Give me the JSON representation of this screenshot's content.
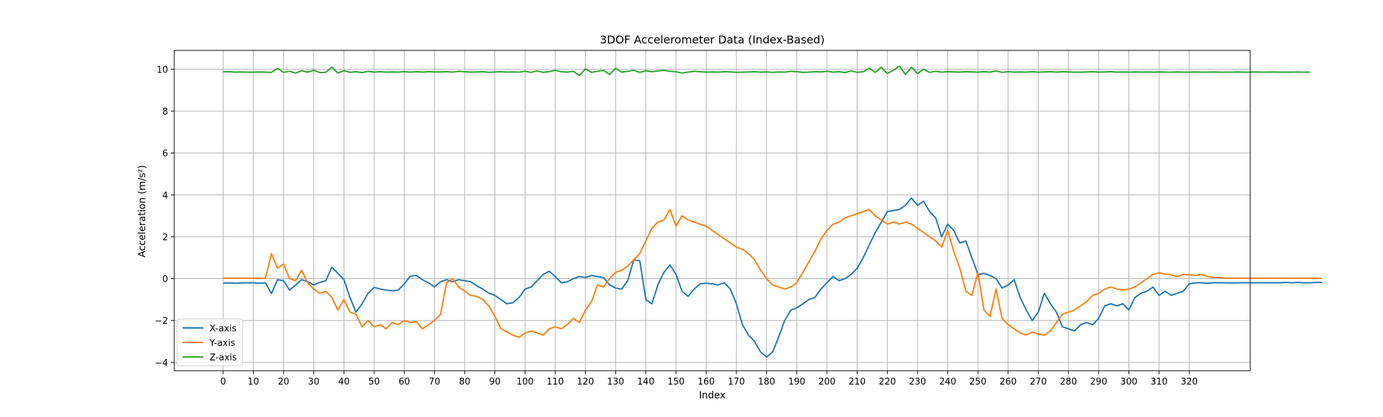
{
  "chart_data": {
    "type": "line",
    "title": "3DOF Accelerometer Data (Index-Based)",
    "xlabel": "Index",
    "ylabel": "Acceleration (m/s²)",
    "xlim": [
      -16.2,
      340.2
    ],
    "ylim": [
      -4.4,
      10.9
    ],
    "x_ticks": [
      "0",
      "10",
      "20",
      "30",
      "40",
      "50",
      "60",
      "70",
      "80",
      "90",
      "100",
      "110",
      "120",
      "130",
      "140",
      "150",
      "160",
      "170",
      "180",
      "190",
      "200",
      "210",
      "220",
      "230",
      "240",
      "250",
      "260",
      "270",
      "280",
      "290",
      "300",
      "310",
      "320"
    ],
    "y_ticks": [
      "−4",
      "−2",
      "0",
      "2",
      "4",
      "6",
      "8",
      "10"
    ],
    "grid": true,
    "legend_position": "lower-left",
    "x_start": 0,
    "x_step": 2,
    "series": [
      {
        "name": "X-axis",
        "color": "#1f77b4",
        "values": [
          -0.22,
          -0.2,
          -0.22,
          -0.21,
          -0.2,
          -0.2,
          -0.22,
          -0.2,
          -0.72,
          -0.05,
          -0.1,
          -0.55,
          -0.3,
          -0.05,
          -0.15,
          -0.3,
          -0.18,
          -0.1,
          0.55,
          0.25,
          -0.05,
          -0.9,
          -1.6,
          -1.2,
          -0.7,
          -0.42,
          -0.5,
          -0.55,
          -0.58,
          -0.55,
          -0.25,
          0.12,
          0.15,
          -0.05,
          -0.2,
          -0.4,
          -0.15,
          -0.05,
          -0.15,
          -0.05,
          -0.1,
          -0.15,
          -0.35,
          -0.5,
          -0.7,
          -0.8,
          -1.0,
          -1.2,
          -1.15,
          -0.9,
          -0.5,
          -0.4,
          -0.1,
          0.2,
          0.35,
          0.1,
          -0.2,
          -0.15,
          0.0,
          0.1,
          0.05,
          0.15,
          0.1,
          0.05,
          -0.3,
          -0.45,
          -0.5,
          -0.1,
          0.9,
          0.85,
          -1.0,
          -1.2,
          -0.3,
          0.3,
          0.65,
          0.2,
          -0.6,
          -0.85,
          -0.5,
          -0.25,
          -0.22,
          -0.25,
          -0.3,
          -0.2,
          -0.5,
          -1.2,
          -2.2,
          -2.7,
          -3.0,
          -3.5,
          -3.75,
          -3.5,
          -2.8,
          -2.0,
          -1.5,
          -1.4,
          -1.2,
          -1.0,
          -0.9,
          -0.5,
          -0.2,
          0.1,
          -0.1,
          0.0,
          0.2,
          0.5,
          1.0,
          1.6,
          2.2,
          2.7,
          3.2,
          3.25,
          3.3,
          3.5,
          3.85,
          3.5,
          3.7,
          3.2,
          2.9,
          2.0,
          2.6,
          2.3,
          1.7,
          1.8,
          1.0,
          0.2,
          0.25,
          0.15,
          0.0,
          -0.45,
          -0.3,
          -0.05,
          -0.9,
          -1.5,
          -2.0,
          -1.6,
          -0.7,
          -1.2,
          -1.6,
          -2.3,
          -2.4,
          -2.5,
          -2.2,
          -2.1,
          -2.2,
          -1.9,
          -1.3,
          -1.2,
          -1.3,
          -1.2,
          -1.5,
          -0.9,
          -0.7,
          -0.6,
          -0.4,
          -0.8,
          -0.6,
          -0.8,
          -0.7,
          -0.6,
          -0.25,
          -0.2,
          -0.2,
          -0.22,
          -0.2,
          -0.2,
          -0.2,
          -0.21,
          -0.2,
          -0.2,
          -0.2,
          -0.2,
          -0.2,
          -0.2,
          -0.2,
          -0.2,
          -0.18,
          -0.2,
          -0.18,
          -0.2,
          -0.2,
          -0.18,
          -0.18
        ]
      },
      {
        "name": "Y-axis",
        "color": "#ff7f0e",
        "values": [
          0.02,
          0.03,
          0.02,
          0.03,
          0.02,
          0.02,
          0.02,
          0.02,
          1.2,
          0.5,
          0.7,
          0.0,
          -0.1,
          0.4,
          -0.2,
          -0.5,
          -0.7,
          -0.6,
          -0.9,
          -1.5,
          -1.0,
          -1.6,
          -1.7,
          -2.3,
          -2.0,
          -2.3,
          -2.2,
          -2.4,
          -2.1,
          -2.2,
          -2.0,
          -2.1,
          -2.05,
          -2.4,
          -2.2,
          -2.0,
          -1.7,
          -0.2,
          0.0,
          -0.4,
          -0.6,
          -0.8,
          -0.85,
          -1.0,
          -1.3,
          -1.8,
          -2.4,
          -2.55,
          -2.7,
          -2.8,
          -2.6,
          -2.5,
          -2.6,
          -2.7,
          -2.4,
          -2.3,
          -2.4,
          -2.2,
          -1.9,
          -2.1,
          -1.5,
          -1.1,
          -0.3,
          -0.4,
          0.0,
          0.3,
          0.4,
          0.6,
          0.9,
          1.2,
          1.8,
          2.4,
          2.7,
          2.8,
          3.3,
          2.5,
          3.0,
          2.8,
          2.7,
          2.6,
          2.5,
          2.3,
          2.1,
          1.9,
          1.7,
          1.5,
          1.4,
          1.2,
          0.9,
          0.4,
          0.0,
          -0.3,
          -0.4,
          -0.5,
          -0.4,
          -0.2,
          0.3,
          0.8,
          1.3,
          1.9,
          2.3,
          2.6,
          2.7,
          2.9,
          3.0,
          3.1,
          3.2,
          3.3,
          3.0,
          2.8,
          2.6,
          2.7,
          2.6,
          2.7,
          2.6,
          2.4,
          2.2,
          2.0,
          1.8,
          1.5,
          2.3,
          1.3,
          0.5,
          -0.6,
          -0.8,
          0.3,
          -1.5,
          -1.8,
          -0.5,
          -1.9,
          -2.2,
          -2.4,
          -2.6,
          -2.7,
          -2.55,
          -2.65,
          -2.7,
          -2.5,
          -2.1,
          -1.7,
          -1.6,
          -1.5,
          -1.3,
          -1.1,
          -0.8,
          -0.7,
          -0.5,
          -0.4,
          -0.5,
          -0.55,
          -0.5,
          -0.4,
          -0.2,
          0.0,
          0.2,
          0.28,
          0.22,
          0.18,
          0.1,
          0.2,
          0.18,
          0.15,
          0.2,
          0.1,
          0.05,
          0.05,
          0.03,
          0.02,
          0.03,
          0.02,
          0.03,
          0.02,
          0.02,
          0.02,
          0.03,
          0.02,
          0.03,
          0.02,
          0.02,
          0.02,
          0.02,
          0.02,
          0.02
        ]
      },
      {
        "name": "Z-axis",
        "color": "#2ca02c",
        "values": [
          9.88,
          9.88,
          9.86,
          9.87,
          9.86,
          9.86,
          9.87,
          9.86,
          9.85,
          10.05,
          9.85,
          9.9,
          9.82,
          9.93,
          9.86,
          9.95,
          9.84,
          9.85,
          10.1,
          9.82,
          9.93,
          9.85,
          9.88,
          9.84,
          9.9,
          9.86,
          9.88,
          9.86,
          9.87,
          9.86,
          9.88,
          9.86,
          9.88,
          9.86,
          9.88,
          9.87,
          9.87,
          9.88,
          9.86,
          9.9,
          9.88,
          9.86,
          9.87,
          9.88,
          9.85,
          9.87,
          9.88,
          9.86,
          9.87,
          9.86,
          9.9,
          9.85,
          9.92,
          9.85,
          9.88,
          9.95,
          9.88,
          9.86,
          9.9,
          9.7,
          10.02,
          9.85,
          9.9,
          9.95,
          9.75,
          10.05,
          9.86,
          9.9,
          9.95,
          9.85,
          9.93,
          9.88,
          9.92,
          9.95,
          9.9,
          9.88,
          9.82,
          9.86,
          9.9,
          9.88,
          9.86,
          9.87,
          9.86,
          9.88,
          9.87,
          9.85,
          9.86,
          9.87,
          9.88,
          9.86,
          9.87,
          9.85,
          9.87,
          9.86,
          9.9,
          9.88,
          9.85,
          9.86,
          9.88,
          9.87,
          9.9,
          9.86,
          9.88,
          9.84,
          9.92,
          9.85,
          9.88,
          10.05,
          9.85,
          10.1,
          9.8,
          9.95,
          10.15,
          9.75,
          10.1,
          9.8,
          10.0,
          9.85,
          9.9,
          9.86,
          9.88,
          9.87,
          9.86,
          9.88,
          9.87,
          9.86,
          9.88,
          9.86,
          9.92,
          9.85,
          9.88,
          9.86,
          9.87,
          9.86,
          9.88,
          9.86,
          9.87,
          9.88,
          9.86,
          9.88,
          9.87,
          9.86,
          9.86,
          9.87,
          9.88,
          9.86,
          9.87,
          9.88,
          9.86,
          9.87,
          9.86,
          9.87,
          9.86,
          9.87,
          9.86,
          9.87,
          9.86,
          9.86,
          9.87,
          9.86,
          9.86,
          9.87,
          9.86,
          9.86,
          9.87,
          9.86,
          9.86,
          9.86,
          9.87,
          9.86,
          9.86,
          9.87,
          9.86,
          9.86,
          9.87,
          9.86,
          9.86,
          9.86,
          9.87,
          9.86,
          9.86
        ]
      }
    ]
  }
}
